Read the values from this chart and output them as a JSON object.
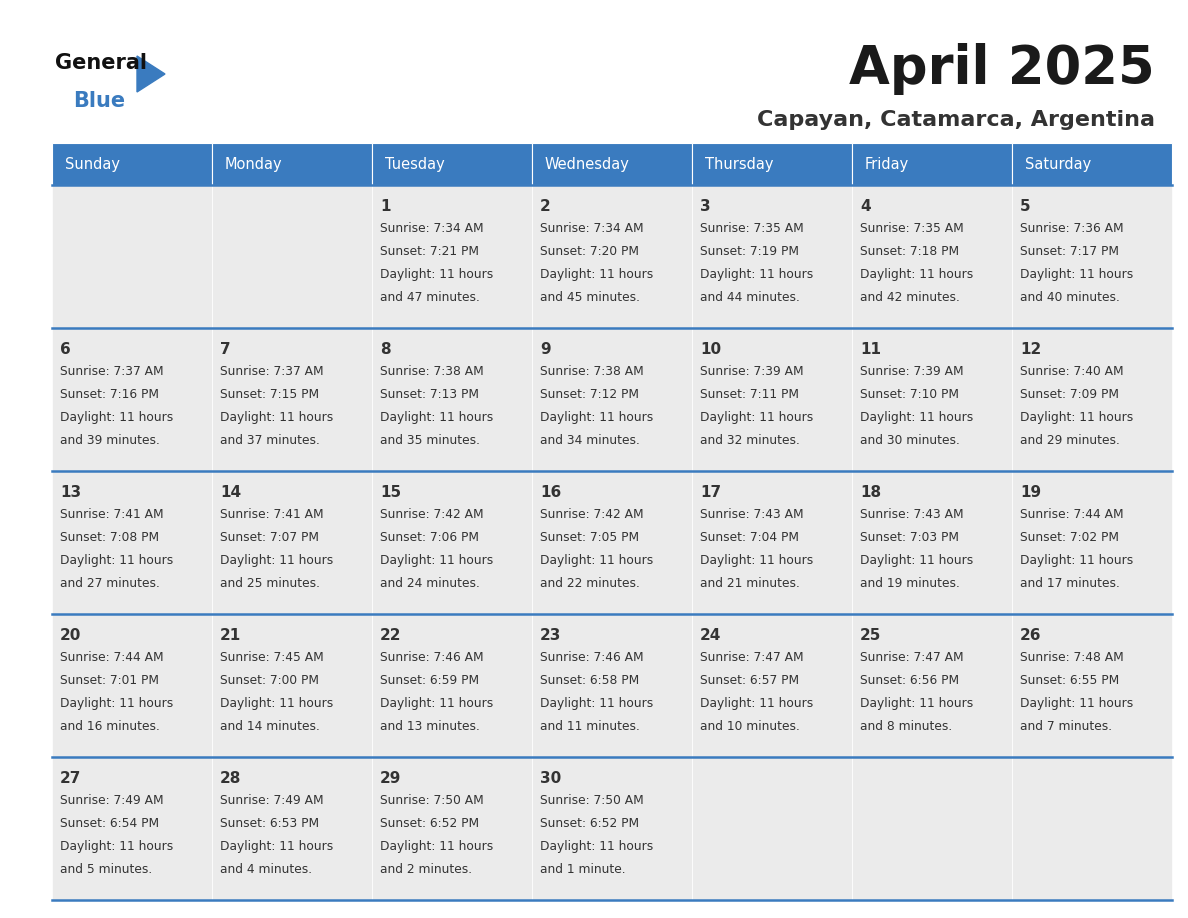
{
  "title": "April 2025",
  "subtitle": "Capayan, Catamarca, Argentina",
  "header_color": "#3a7bbf",
  "header_text_color": "#ffffff",
  "cell_bg_color": "#ebebeb",
  "border_color": "#3a7bbf",
  "title_color": "#1a1a1a",
  "subtitle_color": "#333333",
  "text_color": "#333333",
  "day_names": [
    "Sunday",
    "Monday",
    "Tuesday",
    "Wednesday",
    "Thursday",
    "Friday",
    "Saturday"
  ],
  "days": [
    {
      "date": 1,
      "col": 2,
      "row": 0,
      "sunrise": "7:34 AM",
      "sunset": "7:21 PM",
      "daylight": "11 hours and 47 minutes"
    },
    {
      "date": 2,
      "col": 3,
      "row": 0,
      "sunrise": "7:34 AM",
      "sunset": "7:20 PM",
      "daylight": "11 hours and 45 minutes"
    },
    {
      "date": 3,
      "col": 4,
      "row": 0,
      "sunrise": "7:35 AM",
      "sunset": "7:19 PM",
      "daylight": "11 hours and 44 minutes"
    },
    {
      "date": 4,
      "col": 5,
      "row": 0,
      "sunrise": "7:35 AM",
      "sunset": "7:18 PM",
      "daylight": "11 hours and 42 minutes"
    },
    {
      "date": 5,
      "col": 6,
      "row": 0,
      "sunrise": "7:36 AM",
      "sunset": "7:17 PM",
      "daylight": "11 hours and 40 minutes"
    },
    {
      "date": 6,
      "col": 0,
      "row": 1,
      "sunrise": "7:37 AM",
      "sunset": "7:16 PM",
      "daylight": "11 hours and 39 minutes"
    },
    {
      "date": 7,
      "col": 1,
      "row": 1,
      "sunrise": "7:37 AM",
      "sunset": "7:15 PM",
      "daylight": "11 hours and 37 minutes"
    },
    {
      "date": 8,
      "col": 2,
      "row": 1,
      "sunrise": "7:38 AM",
      "sunset": "7:13 PM",
      "daylight": "11 hours and 35 minutes"
    },
    {
      "date": 9,
      "col": 3,
      "row": 1,
      "sunrise": "7:38 AM",
      "sunset": "7:12 PM",
      "daylight": "11 hours and 34 minutes"
    },
    {
      "date": 10,
      "col": 4,
      "row": 1,
      "sunrise": "7:39 AM",
      "sunset": "7:11 PM",
      "daylight": "11 hours and 32 minutes"
    },
    {
      "date": 11,
      "col": 5,
      "row": 1,
      "sunrise": "7:39 AM",
      "sunset": "7:10 PM",
      "daylight": "11 hours and 30 minutes"
    },
    {
      "date": 12,
      "col": 6,
      "row": 1,
      "sunrise": "7:40 AM",
      "sunset": "7:09 PM",
      "daylight": "11 hours and 29 minutes"
    },
    {
      "date": 13,
      "col": 0,
      "row": 2,
      "sunrise": "7:41 AM",
      "sunset": "7:08 PM",
      "daylight": "11 hours and 27 minutes"
    },
    {
      "date": 14,
      "col": 1,
      "row": 2,
      "sunrise": "7:41 AM",
      "sunset": "7:07 PM",
      "daylight": "11 hours and 25 minutes"
    },
    {
      "date": 15,
      "col": 2,
      "row": 2,
      "sunrise": "7:42 AM",
      "sunset": "7:06 PM",
      "daylight": "11 hours and 24 minutes"
    },
    {
      "date": 16,
      "col": 3,
      "row": 2,
      "sunrise": "7:42 AM",
      "sunset": "7:05 PM",
      "daylight": "11 hours and 22 minutes"
    },
    {
      "date": 17,
      "col": 4,
      "row": 2,
      "sunrise": "7:43 AM",
      "sunset": "7:04 PM",
      "daylight": "11 hours and 21 minutes"
    },
    {
      "date": 18,
      "col": 5,
      "row": 2,
      "sunrise": "7:43 AM",
      "sunset": "7:03 PM",
      "daylight": "11 hours and 19 minutes"
    },
    {
      "date": 19,
      "col": 6,
      "row": 2,
      "sunrise": "7:44 AM",
      "sunset": "7:02 PM",
      "daylight": "11 hours and 17 minutes"
    },
    {
      "date": 20,
      "col": 0,
      "row": 3,
      "sunrise": "7:44 AM",
      "sunset": "7:01 PM",
      "daylight": "11 hours and 16 minutes"
    },
    {
      "date": 21,
      "col": 1,
      "row": 3,
      "sunrise": "7:45 AM",
      "sunset": "7:00 PM",
      "daylight": "11 hours and 14 minutes"
    },
    {
      "date": 22,
      "col": 2,
      "row": 3,
      "sunrise": "7:46 AM",
      "sunset": "6:59 PM",
      "daylight": "11 hours and 13 minutes"
    },
    {
      "date": 23,
      "col": 3,
      "row": 3,
      "sunrise": "7:46 AM",
      "sunset": "6:58 PM",
      "daylight": "11 hours and 11 minutes"
    },
    {
      "date": 24,
      "col": 4,
      "row": 3,
      "sunrise": "7:47 AM",
      "sunset": "6:57 PM",
      "daylight": "11 hours and 10 minutes"
    },
    {
      "date": 25,
      "col": 5,
      "row": 3,
      "sunrise": "7:47 AM",
      "sunset": "6:56 PM",
      "daylight": "11 hours and 8 minutes"
    },
    {
      "date": 26,
      "col": 6,
      "row": 3,
      "sunrise": "7:48 AM",
      "sunset": "6:55 PM",
      "daylight": "11 hours and 7 minutes"
    },
    {
      "date": 27,
      "col": 0,
      "row": 4,
      "sunrise": "7:49 AM",
      "sunset": "6:54 PM",
      "daylight": "11 hours and 5 minutes"
    },
    {
      "date": 28,
      "col": 1,
      "row": 4,
      "sunrise": "7:49 AM",
      "sunset": "6:53 PM",
      "daylight": "11 hours and 4 minutes"
    },
    {
      "date": 29,
      "col": 2,
      "row": 4,
      "sunrise": "7:50 AM",
      "sunset": "6:52 PM",
      "daylight": "11 hours and 2 minutes"
    },
    {
      "date": 30,
      "col": 3,
      "row": 4,
      "sunrise": "7:50 AM",
      "sunset": "6:52 PM",
      "daylight": "11 hours and 1 minute"
    }
  ]
}
